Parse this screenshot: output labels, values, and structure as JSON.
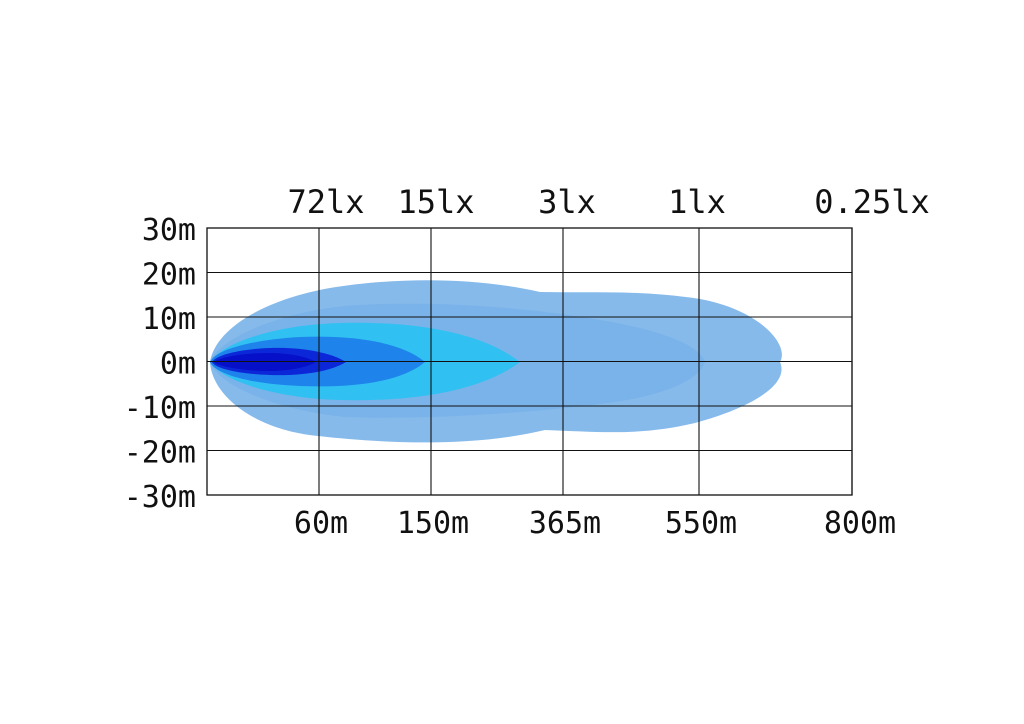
{
  "chart_data": {
    "type": "area",
    "title": "",
    "xlabel": "",
    "ylabel": "",
    "y_tick_labels": [
      "30m",
      "20m",
      "10m",
      "0m",
      "-10m",
      "-20m",
      "-30m"
    ],
    "y_ticks": [
      30,
      20,
      10,
      0,
      -10,
      -20,
      -30
    ],
    "ylim": [
      -30,
      30
    ],
    "x_tick_labels": [
      "60m",
      "150m",
      "365m",
      "550m",
      "800m"
    ],
    "lux_labels": [
      "72lx",
      "15lx",
      "3lx",
      "1lx",
      "0.25lx"
    ],
    "grid": true,
    "x_scale": "non-linear (illuminance zones)",
    "series": [
      {
        "name": "0.25lx",
        "color": "#80b6ea",
        "reach": "550m-800m",
        "half_width_max_m": 18
      },
      {
        "name": "1lx",
        "color": "#7ab2e8",
        "reach": "550m",
        "half_width_max_m": 13
      },
      {
        "name": "3lx",
        "color": "#29c2f2",
        "reach": "365m",
        "half_width_max_m": 8
      },
      {
        "name": "15lx",
        "color": "#1e7eec",
        "reach": "150m",
        "half_width_max_m": 5
      },
      {
        "name": "72lx",
        "color": "#0a1fd6",
        "reach": "60m",
        "half_width_max_m": 2
      }
    ]
  }
}
